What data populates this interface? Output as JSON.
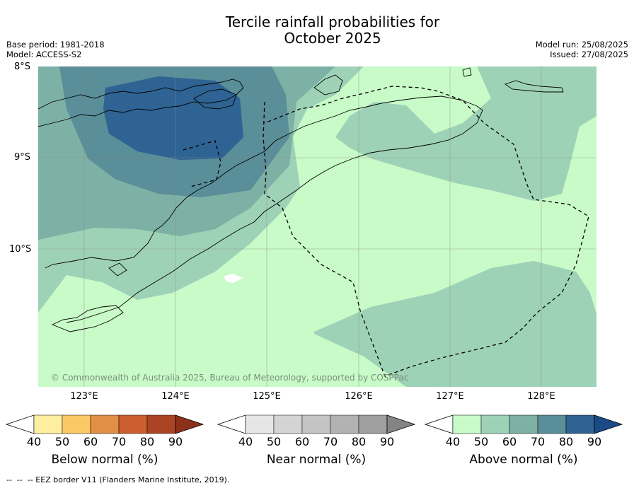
{
  "header": {
    "title_line1": "Tercile rainfall probabilities for",
    "title_line2": "October 2025",
    "base_period": "Base period: 1981-2018",
    "model": "Model: ACCESS-S2",
    "model_run": "Model run: 25/08/2025",
    "issued": "Issued: 27/08/2025"
  },
  "map": {
    "lat_labels": [
      "8°S",
      "9°S",
      "10°S"
    ],
    "lon_labels": [
      "123°E",
      "124°E",
      "125°E",
      "126°E",
      "127°E",
      "128°E"
    ],
    "copyright": "© Commonwealth of Australia 2025, Bureau of Meteorology, supported by COSPPac",
    "colors": {
      "land_outline": "#000000",
      "grid": "#888888"
    }
  },
  "colorbars": [
    {
      "title": "Below normal (%)",
      "ticks": [
        "40",
        "50",
        "60",
        "70",
        "80",
        "90"
      ],
      "colors": [
        "#ffffff",
        "#fdeea0",
        "#fbc963",
        "#e08f45",
        "#cb5f2f",
        "#ab4425",
        "#8b3019"
      ]
    },
    {
      "title": "Near normal (%)",
      "ticks": [
        "40",
        "50",
        "60",
        "70",
        "80",
        "90"
      ],
      "colors": [
        "#ffffff",
        "#e6e6e6",
        "#d4d4d4",
        "#c4c4c4",
        "#b2b2b2",
        "#9f9f9f",
        "#848484"
      ]
    },
    {
      "title": "Above normal (%)",
      "ticks": [
        "40",
        "50",
        "60",
        "70",
        "80",
        "90"
      ],
      "colors": [
        "#ffffff",
        "#c8fbc8",
        "#9ed2b7",
        "#7eb1a5",
        "#5a8e98",
        "#2f6393",
        "#1b4b86"
      ]
    }
  ],
  "legend": {
    "eez_border": "-- EEZ border V11 (Flanders Marine Institute, 2019)."
  }
}
